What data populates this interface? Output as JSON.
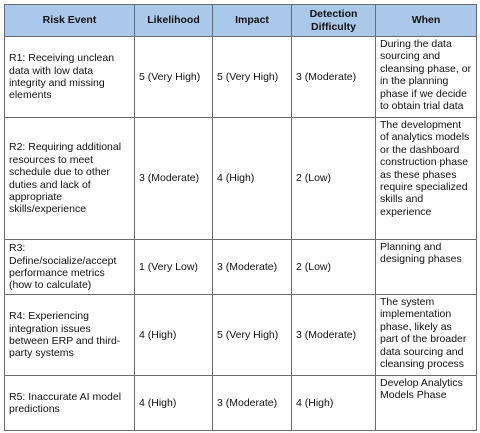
{
  "table": {
    "headers": [
      "Risk Event",
      "Likelihood",
      "Impact",
      "Detection Difficulty",
      "When"
    ],
    "rows": [
      {
        "risk_event": "R1: Receiving unclean data with low data integrity and missing elements",
        "likelihood": "5 (Very High)",
        "impact": "5 (Very High)",
        "detection_difficulty": "3 (Moderate)",
        "when": "During the data sourcing and cleansing phase, or in the planning phase if we decide to obtain trial data"
      },
      {
        "risk_event": "R2: Requiring additional resources to meet schedule due to other duties and lack of appropriate skills/experience",
        "likelihood": "3 (Moderate)",
        "impact": "4 (High)",
        "detection_difficulty": "2 (Low)",
        "when": "The development of analytics models or the dashboard construction phase as these phases require specialized skills and experience"
      },
      {
        "risk_event": "R3: Define/socialize/accept performance metrics (how to calculate)",
        "likelihood": "1 (Very Low)",
        "impact": "3 (Moderate)",
        "detection_difficulty": "2 (Low)",
        "when": "Planning and designing phases"
      },
      {
        "risk_event": "R4: Experiencing integration issues between ERP and third-party systems",
        "likelihood": "4 (High)",
        "impact": "5 (Very High)",
        "detection_difficulty": "3 (Moderate)",
        "when": "The system implementation phase, likely as part of the broader data sourcing and cleansing process"
      },
      {
        "risk_event": "R5: Inaccurate AI model predictions",
        "likelihood": "4 (High)",
        "impact": "3 (Moderate)",
        "detection_difficulty": "4 (High)",
        "when": "Develop Analytics Models Phase"
      }
    ]
  }
}
